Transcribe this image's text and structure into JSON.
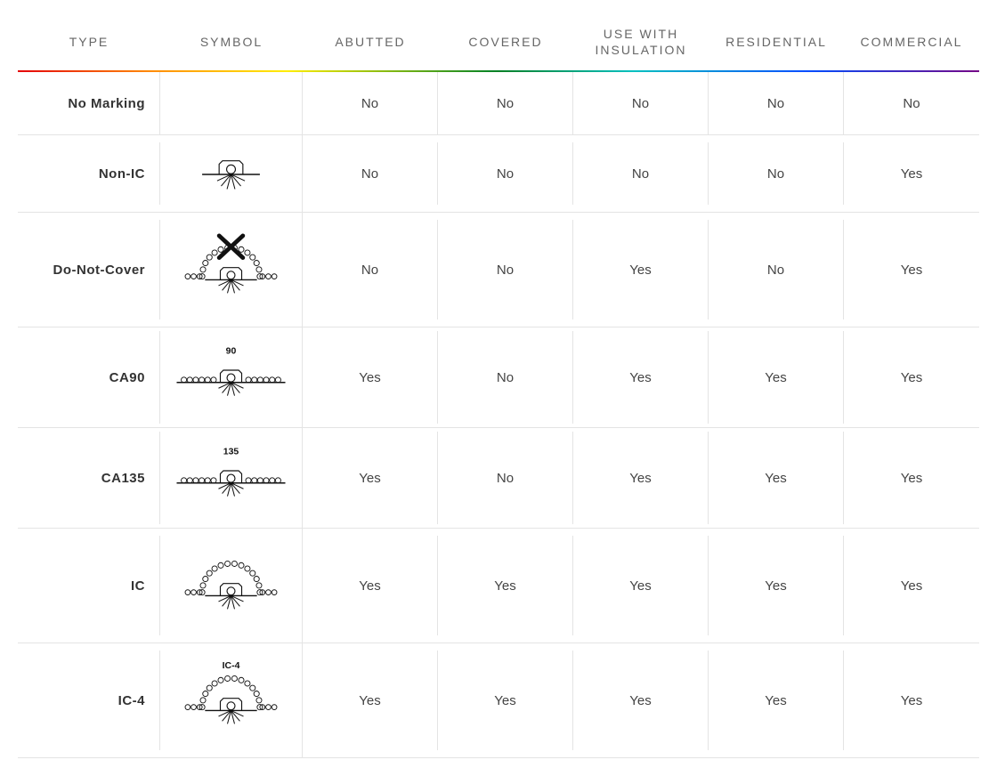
{
  "table": {
    "columns": [
      "TYPE",
      "SYMBOL",
      "ABUTTED",
      "COVERED",
      "USE WITH\nINSULATION",
      "RESIDENTIAL",
      "COMMERCIAL"
    ],
    "header_fontsize": 14,
    "header_color": "#666666",
    "header_letter_spacing": 2,
    "rainbow_gradient": [
      "#e40303",
      "#ff8c00",
      "#ffed00",
      "#008026",
      "#00c0c0",
      "#004dff",
      "#750787"
    ],
    "grid_color": "#e4e4e4",
    "cell_font_color": "#444444",
    "type_font_color": "#333333",
    "type_font_weight": 700,
    "cell_fontsize": 15,
    "symbol_stroke": "#111111",
    "symbol_stroke_width": 1.2,
    "rows": [
      {
        "type": "No Marking",
        "symbol": "none",
        "symbol_label": "",
        "abutted": "No",
        "covered": "No",
        "use_with_insulation": "No",
        "residential": "No",
        "commercial": "No",
        "tall": false
      },
      {
        "type": "Non-IC",
        "symbol": "basic",
        "symbol_label": "",
        "abutted": "No",
        "covered": "No",
        "use_with_insulation": "No",
        "residential": "No",
        "commercial": "Yes",
        "tall": false
      },
      {
        "type": "Do-Not-Cover",
        "symbol": "dome-x",
        "symbol_label": "",
        "abutted": "No",
        "covered": "No",
        "use_with_insulation": "Yes",
        "residential": "No",
        "commercial": "Yes",
        "tall": true
      },
      {
        "type": "CA90",
        "symbol": "abut",
        "symbol_label": "90",
        "abutted": "Yes",
        "covered": "No",
        "use_with_insulation": "Yes",
        "residential": "Yes",
        "commercial": "Yes",
        "tall": true
      },
      {
        "type": "CA135",
        "symbol": "abut",
        "symbol_label": "135",
        "abutted": "Yes",
        "covered": "No",
        "use_with_insulation": "Yes",
        "residential": "Yes",
        "commercial": "Yes",
        "tall": true
      },
      {
        "type": "IC",
        "symbol": "dome",
        "symbol_label": "",
        "abutted": "Yes",
        "covered": "Yes",
        "use_with_insulation": "Yes",
        "residential": "Yes",
        "commercial": "Yes",
        "tall": true
      },
      {
        "type": "IC-4",
        "symbol": "dome",
        "symbol_label": "IC-4",
        "abutted": "Yes",
        "covered": "Yes",
        "use_with_insulation": "Yes",
        "residential": "Yes",
        "commercial": "Yes",
        "tall": true
      }
    ]
  }
}
